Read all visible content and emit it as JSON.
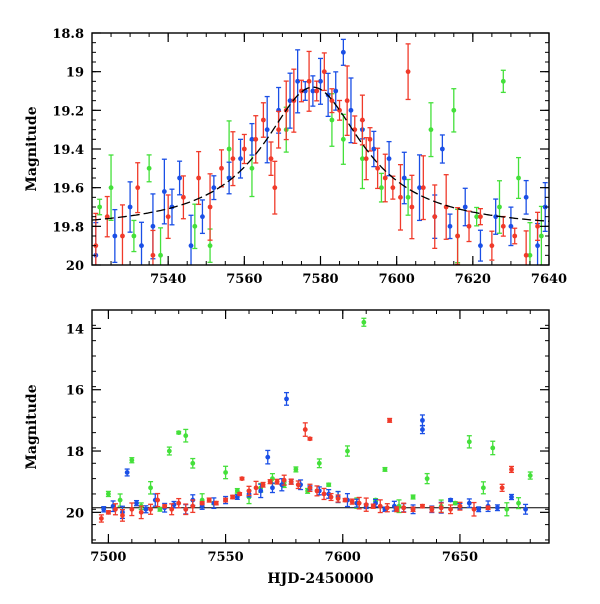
{
  "colors": {
    "blue": "#1a4fe6",
    "green": "#44e03a",
    "red": "#f03a2a",
    "model": "#000000"
  },
  "chart_data": [
    {
      "type": "scatter",
      "panel": "top",
      "title": "",
      "xlabel": "",
      "ylabel": "Magnitude",
      "xlim": [
        7520,
        7640
      ],
      "ylim": [
        20.0,
        18.8
      ],
      "y_inverted": true,
      "xticks": [
        "7540",
        "7560",
        "7580",
        "7600",
        "7620",
        "7640"
      ],
      "yticks": [
        "18.8",
        "19",
        "19.2",
        "19.4",
        "19.6",
        "19.8",
        "20"
      ],
      "model_curve": {
        "peak_x": 7578,
        "peak_mag": 19.08,
        "baseline_mag": 19.82,
        "width": 16,
        "style": "long-dashed"
      },
      "series": [
        {
          "color": "blue",
          "points": [
            [
              7521,
              19.95
            ],
            [
              7526,
              19.85
            ],
            [
              7530,
              19.7
            ],
            [
              7533,
              19.9
            ],
            [
              7536,
              19.8
            ],
            [
              7539,
              19.62
            ],
            [
              7541,
              19.7
            ],
            [
              7543,
              19.55
            ],
            [
              7546,
              19.9
            ],
            [
              7549,
              19.75
            ],
            [
              7552,
              19.6
            ],
            [
              7556,
              19.55
            ],
            [
              7559,
              19.45
            ],
            [
              7562,
              19.35
            ],
            [
              7566,
              19.3
            ],
            [
              7569,
              19.2
            ],
            [
              7572,
              19.15
            ],
            [
              7574,
              19.05
            ],
            [
              7576,
              19.1
            ],
            [
              7578,
              19.1
            ],
            [
              7580,
              19.05
            ],
            [
              7582,
              19.12
            ],
            [
              7584,
              19.1
            ],
            [
              7586,
              18.9
            ],
            [
              7588,
              19.2
            ],
            [
              7591,
              19.3
            ],
            [
              7594,
              19.4
            ],
            [
              7598,
              19.45
            ],
            [
              7602,
              19.55
            ],
            [
              7606,
              19.6
            ],
            [
              7610,
              19.75
            ],
            [
              7614,
              19.8
            ],
            [
              7618,
              19.7
            ],
            [
              7622,
              19.9
            ],
            [
              7626,
              19.75
            ],
            [
              7630,
              19.8
            ],
            [
              7634,
              19.65
            ],
            [
              7637,
              19.9
            ],
            [
              7639,
              19.7
            ],
            [
              7612,
              19.4
            ]
          ]
        },
        {
          "color": "green",
          "points": [
            [
              7522,
              19.7
            ],
            [
              7525,
              19.6
            ],
            [
              7531,
              19.85
            ],
            [
              7535,
              19.5
            ],
            [
              7538,
              19.95
            ],
            [
              7547,
              19.8
            ],
            [
              7551,
              19.9
            ],
            [
              7556,
              19.4
            ],
            [
              7562,
              19.5
            ],
            [
              7571,
              19.3
            ],
            [
              7583,
              19.25
            ],
            [
              7586,
              19.35
            ],
            [
              7591,
              19.45
            ],
            [
              7596,
              19.6
            ],
            [
              7603,
              19.65
            ],
            [
              7609,
              19.3
            ],
            [
              7616,
              19.85
            ],
            [
              7621,
              19.75
            ],
            [
              7627,
              19.7
            ],
            [
              7632,
              19.55
            ],
            [
              7635,
              19.95
            ],
            [
              7638,
              19.85
            ],
            [
              7628,
              19.05
            ],
            [
              7615,
              19.2
            ]
          ]
        },
        {
          "color": "red",
          "points": [
            [
              7521,
              19.9
            ],
            [
              7524,
              19.75
            ],
            [
              7528,
              19.85
            ],
            [
              7532,
              19.6
            ],
            [
              7536,
              19.95
            ],
            [
              7540,
              19.75
            ],
            [
              7544,
              19.65
            ],
            [
              7548,
              19.55
            ],
            [
              7551,
              19.7
            ],
            [
              7554,
              19.5
            ],
            [
              7557,
              19.45
            ],
            [
              7560,
              19.4
            ],
            [
              7563,
              19.35
            ],
            [
              7565,
              19.25
            ],
            [
              7567,
              19.45
            ],
            [
              7569,
              19.3
            ],
            [
              7571,
              19.2
            ],
            [
              7573,
              19.15
            ],
            [
              7575,
              19.1
            ],
            [
              7577,
              19.05
            ],
            [
              7579,
              19.1
            ],
            [
              7581,
              19.0
            ],
            [
              7583,
              19.15
            ],
            [
              7585,
              19.2
            ],
            [
              7587,
              19.15
            ],
            [
              7589,
              19.3
            ],
            [
              7591,
              19.25
            ],
            [
              7593,
              19.35
            ],
            [
              7595,
              19.5
            ],
            [
              7597,
              19.55
            ],
            [
              7599,
              19.6
            ],
            [
              7601,
              19.65
            ],
            [
              7604,
              19.7
            ],
            [
              7607,
              19.6
            ],
            [
              7610,
              19.75
            ],
            [
              7613,
              19.7
            ],
            [
              7616,
              19.85
            ],
            [
              7619,
              19.8
            ],
            [
              7622,
              19.75
            ],
            [
              7625,
              19.9
            ],
            [
              7628,
              19.8
            ],
            [
              7631,
              19.85
            ],
            [
              7634,
              19.95
            ],
            [
              7637,
              19.8
            ],
            [
              7603,
              19.0
            ],
            [
              7592,
              19.45
            ],
            [
              7568,
              19.6
            ]
          ]
        }
      ]
    },
    {
      "type": "scatter",
      "panel": "bottom",
      "title": "",
      "xlabel": "HJD-2450000",
      "ylabel": "Magnitude",
      "xlim": [
        7493,
        7688
      ],
      "ylim": [
        21.0,
        13.4
      ],
      "y_inverted": true,
      "xticks": [
        "7500",
        "7550",
        "7600",
        "7650"
      ],
      "yticks": [
        "14",
        "16",
        "18",
        "20"
      ],
      "reference_line": 19.85,
      "series": [
        {
          "color": "blue",
          "points": [
            [
              7498,
              19.9
            ],
            [
              7502,
              19.8
            ],
            [
              7506,
              20.0
            ],
            [
              7508,
              18.7
            ],
            [
              7512,
              19.7
            ],
            [
              7516,
              19.9
            ],
            [
              7520,
              19.6
            ],
            [
              7524,
              19.85
            ],
            [
              7528,
              19.75
            ],
            [
              7533,
              19.9
            ],
            [
              7536,
              19.6
            ],
            [
              7540,
              19.8
            ],
            [
              7545,
              19.7
            ],
            [
              7550,
              19.6
            ],
            [
              7555,
              19.5
            ],
            [
              7560,
              19.4
            ],
            [
              7565,
              19.3
            ],
            [
              7568,
              18.2
            ],
            [
              7570,
              19.2
            ],
            [
              7574,
              19.1
            ],
            [
              7576,
              16.3
            ],
            [
              7578,
              19.0
            ],
            [
              7582,
              19.1
            ],
            [
              7586,
              19.2
            ],
            [
              7590,
              19.3
            ],
            [
              7594,
              19.4
            ],
            [
              7598,
              19.5
            ],
            [
              7602,
              19.6
            ],
            [
              7606,
              19.7
            ],
            [
              7610,
              19.8
            ],
            [
              7614,
              19.7
            ],
            [
              7618,
              19.9
            ],
            [
              7622,
              19.8
            ],
            [
              7626,
              19.85
            ],
            [
              7630,
              19.9
            ],
            [
              7634,
              17.3
            ],
            [
              7634,
              17.0
            ],
            [
              7638,
              19.9
            ],
            [
              7642,
              19.85
            ],
            [
              7646,
              19.6
            ],
            [
              7650,
              19.8
            ],
            [
              7654,
              19.7
            ],
            [
              7658,
              19.9
            ],
            [
              7662,
              19.8
            ],
            [
              7666,
              19.85
            ],
            [
              7672,
              19.5
            ],
            [
              7678,
              19.9
            ]
          ]
        },
        {
          "color": "green",
          "points": [
            [
              7500,
              19.4
            ],
            [
              7505,
              19.6
            ],
            [
              7510,
              18.3
            ],
            [
              7514,
              19.8
            ],
            [
              7518,
              19.2
            ],
            [
              7522,
              19.9
            ],
            [
              7526,
              18.0
            ],
            [
              7530,
              17.4
            ],
            [
              7533,
              17.5
            ],
            [
              7536,
              18.4
            ],
            [
              7540,
              19.6
            ],
            [
              7545,
              19.7
            ],
            [
              7550,
              18.7
            ],
            [
              7555,
              19.3
            ],
            [
              7560,
              19.5
            ],
            [
              7565,
              19.2
            ],
            [
              7570,
              18.9
            ],
            [
              7575,
              19.1
            ],
            [
              7580,
              18.6
            ],
            [
              7585,
              19.3
            ],
            [
              7590,
              18.4
            ],
            [
              7594,
              19.1
            ],
            [
              7598,
              19.5
            ],
            [
              7602,
              18.0
            ],
            [
              7606,
              19.7
            ],
            [
              7609,
              13.8
            ],
            [
              7614,
              19.6
            ],
            [
              7618,
              18.6
            ],
            [
              7624,
              19.8
            ],
            [
              7630,
              19.5
            ],
            [
              7636,
              18.9
            ],
            [
              7642,
              19.8
            ],
            [
              7648,
              19.7
            ],
            [
              7654,
              17.7
            ],
            [
              7660,
              19.2
            ],
            [
              7664,
              17.9
            ],
            [
              7670,
              19.9
            ],
            [
              7675,
              19.7
            ],
            [
              7680,
              18.8
            ]
          ]
        },
        {
          "color": "red",
          "points": [
            [
              7497,
              20.2
            ],
            [
              7500,
              20.0
            ],
            [
              7503,
              19.9
            ],
            [
              7506,
              20.1
            ],
            [
              7510,
              19.9
            ],
            [
              7514,
              20.0
            ],
            [
              7518,
              19.9
            ],
            [
              7521,
              19.6
            ],
            [
              7524,
              19.8
            ],
            [
              7527,
              19.9
            ],
            [
              7530,
              19.7
            ],
            [
              7533,
              19.9
            ],
            [
              7536,
              19.8
            ],
            [
              7540,
              19.7
            ],
            [
              7543,
              19.6
            ],
            [
              7546,
              19.7
            ],
            [
              7550,
              19.6
            ],
            [
              7553,
              19.5
            ],
            [
              7556,
              19.4
            ],
            [
              7560,
              19.3
            ],
            [
              7563,
              19.2
            ],
            [
              7566,
              19.1
            ],
            [
              7569,
              19.0
            ],
            [
              7572,
              19.0
            ],
            [
              7575,
              18.95
            ],
            [
              7578,
              19.0
            ],
            [
              7581,
              19.1
            ],
            [
              7584,
              17.3
            ],
            [
              7586,
              19.2
            ],
            [
              7589,
              19.3
            ],
            [
              7592,
              19.4
            ],
            [
              7595,
              19.5
            ],
            [
              7598,
              19.55
            ],
            [
              7601,
              19.6
            ],
            [
              7604,
              19.65
            ],
            [
              7607,
              19.7
            ],
            [
              7610,
              19.75
            ],
            [
              7613,
              19.8
            ],
            [
              7616,
              19.8
            ],
            [
              7619,
              19.85
            ],
            [
              7620,
              17.0
            ],
            [
              7623,
              19.9
            ],
            [
              7626,
              19.85
            ],
            [
              7630,
              19.9
            ],
            [
              7634,
              19.8
            ],
            [
              7638,
              19.9
            ],
            [
              7642,
              19.85
            ],
            [
              7646,
              19.9
            ],
            [
              7650,
              19.8
            ],
            [
              7656,
              19.9
            ],
            [
              7662,
              19.85
            ],
            [
              7668,
              19.2
            ],
            [
              7672,
              18.6
            ],
            [
              7586,
              17.6
            ],
            [
              7557,
              18.9
            ]
          ]
        }
      ]
    }
  ]
}
